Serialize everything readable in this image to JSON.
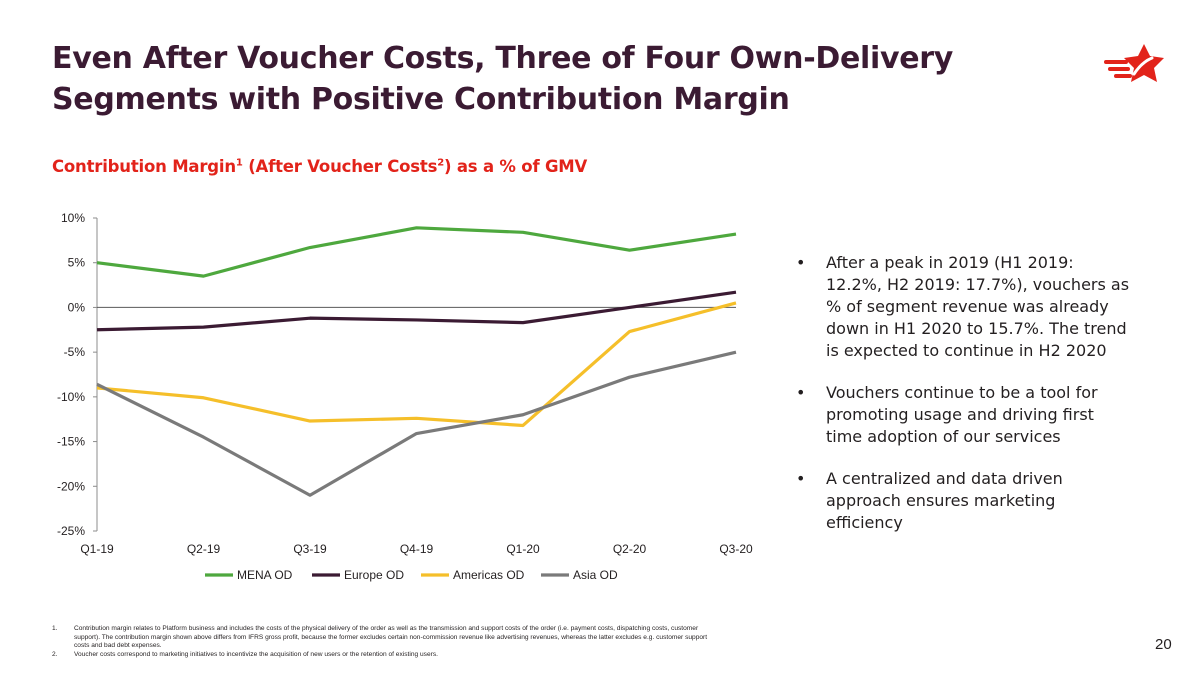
{
  "slide": {
    "title": "Even After Voucher Costs, Three of Four Own-Delivery Segments with Positive Contribution Margin",
    "subtitle_part1": "Contribution Margin",
    "subtitle_sup1": "1",
    "subtitle_part2": " (After Voucher Costs",
    "subtitle_sup2": "2",
    "subtitle_part3": ") as a % of GMV",
    "page_number": "20",
    "brand_color": "#e2231a",
    "title_color": "#3b1b33"
  },
  "bullets": [
    "After a peak in 2019 (H1 2019: 12.2%, H2 2019: 17.7%), vouchers as % of segment revenue was already down in H1 2020 to 15.7%. The trend is expected to continue in H2 2020",
    "Vouchers continue to be a tool for promoting usage and driving first time adoption of our services",
    "A centralized and data driven approach ensures marketing efficiency"
  ],
  "bullet_symbol": "•",
  "footnotes": [
    {
      "num": "1.",
      "text": "Contribution margin relates to Platform business and includes the costs of the physical delivery of the order as well as the transmission and support costs of the order (i.e. payment costs, dispatching costs, customer support). The contribution margin shown above differs from IFRS gross profit, because the former excludes certain non-commission revenue like advertising revenues, whereas the latter excludes e.g. customer support costs and bad debt expenses."
    },
    {
      "num": "2.",
      "text": "Voucher costs correspond to marketing initiatives to incentivize the acquisition of new users or the retention of existing users."
    }
  ],
  "chart_data": {
    "type": "line",
    "title": "Contribution Margin (After Voucher Costs) as a % of GMV",
    "categories": [
      "Q1-19",
      "Q2-19",
      "Q3-19",
      "Q4-19",
      "Q1-20",
      "Q2-20",
      "Q3-20"
    ],
    "y_ticks": [
      10,
      5,
      0,
      -5,
      -10,
      -15,
      -20,
      -25
    ],
    "y_tick_labels": [
      "10%",
      "5%",
      "0%",
      "-5%",
      "-10%",
      "-15%",
      "-20%",
      "-25%"
    ],
    "ylim": [
      -25,
      10
    ],
    "grid": false,
    "legend_position": "bottom",
    "series": [
      {
        "name": "MENA OD",
        "color": "#4ea83e",
        "values": [
          5.0,
          3.5,
          6.7,
          8.9,
          8.4,
          6.4,
          8.2
        ]
      },
      {
        "name": "Europe OD",
        "color": "#3b1b33",
        "values": [
          -2.5,
          -2.2,
          -1.2,
          -1.4,
          -1.7,
          0.0,
          1.7
        ]
      },
      {
        "name": "Americas OD",
        "color": "#f5bf2a",
        "values": [
          -9.0,
          -10.1,
          -12.7,
          -12.4,
          -13.2,
          -2.7,
          0.5
        ]
      },
      {
        "name": "Asia OD",
        "color": "#7a7a7a",
        "values": [
          -8.6,
          -14.5,
          -21.0,
          -14.1,
          -12.0,
          -7.8,
          -5.0
        ]
      }
    ]
  }
}
